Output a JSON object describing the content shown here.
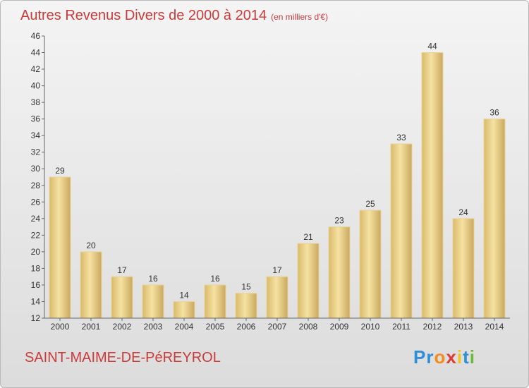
{
  "chart_data": {
    "type": "bar",
    "title": "Autres Revenus Divers de 2000 à 2014",
    "subtitle": "(en milliers d'€)",
    "categories": [
      "2000",
      "2001",
      "2002",
      "2003",
      "2004",
      "2005",
      "2006",
      "2007",
      "2008",
      "2009",
      "2010",
      "2011",
      "2012",
      "2013",
      "2014"
    ],
    "values": [
      29,
      20,
      17,
      16,
      14,
      16,
      15,
      17,
      21,
      23,
      25,
      33,
      44,
      24,
      36
    ],
    "ylim": [
      12,
      46
    ],
    "yticks": [
      12,
      14,
      16,
      18,
      20,
      22,
      24,
      26,
      28,
      30,
      32,
      34,
      36,
      38,
      40,
      42,
      44,
      46
    ],
    "grid": false,
    "colors": {
      "bar_light": "#f6e2a2",
      "bar_dark": "#c9a85e",
      "title": "#cc3a3a"
    }
  },
  "footer": {
    "commune": "SAINT-MAIME-DE-PéREYROL",
    "logo": [
      "P",
      "r",
      "o",
      "x",
      "i",
      "t",
      "i"
    ],
    "logo_colors": [
      "#2f8fd6",
      "#2f8fd6",
      "#f28c1e",
      "#e23b2f",
      "#f2c21e",
      "#2f8fd6",
      "#6cba3c"
    ]
  }
}
